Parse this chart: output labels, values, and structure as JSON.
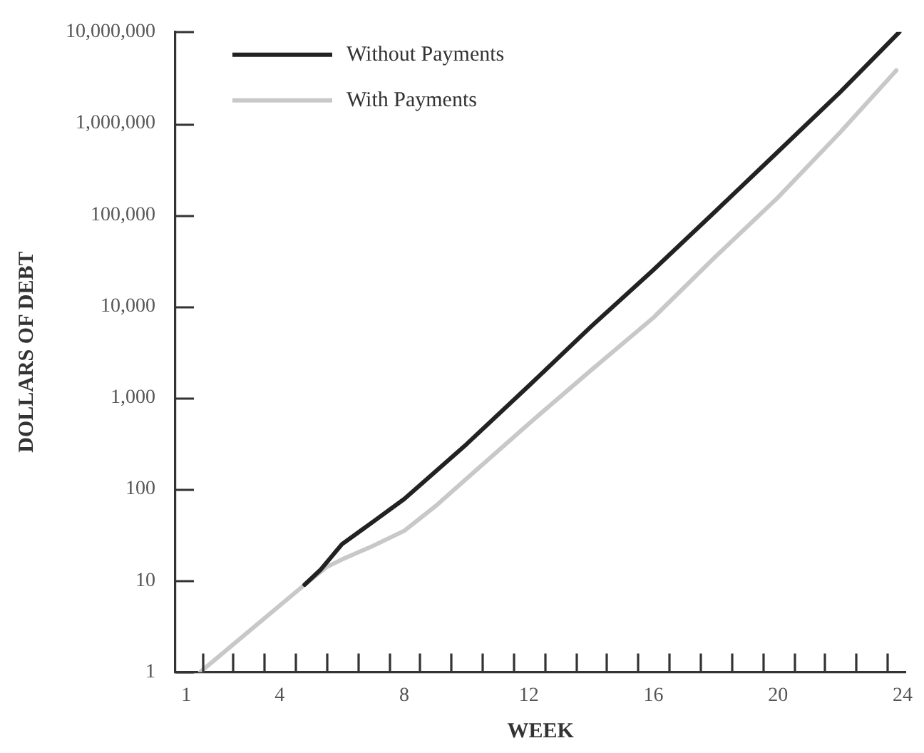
{
  "chart_data": {
    "type": "line",
    "xlabel": "WEEK",
    "ylabel": "DOLLARS OF DEBT",
    "log": "y",
    "grid": false,
    "legend": "top left",
    "marker": "none",
    "line_style": "solid",
    "xlim": [
      0.65,
      24.1
    ],
    "xticks": [
      1,
      {
        "value": 1.5,
        "label": null
      },
      {
        "value": 2.5,
        "label": null
      },
      {
        "value": 3.5,
        "label": null
      },
      4,
      {
        "value": 4.5,
        "label": null
      },
      {
        "value": 5.5,
        "label": null
      },
      {
        "value": 6.5,
        "label": null
      },
      {
        "value": 7.5,
        "label": null
      },
      8,
      {
        "value": 8.5,
        "label": null
      },
      {
        "value": 9.5,
        "label": null
      },
      {
        "value": 10.5,
        "label": null
      },
      {
        "value": 11.5,
        "label": null
      },
      12,
      {
        "value": 12.5,
        "label": null
      },
      {
        "value": 13.5,
        "label": null
      },
      {
        "value": 14.5,
        "label": null
      },
      {
        "value": 15.5,
        "label": null
      },
      16,
      {
        "value": 16.5,
        "label": null
      },
      {
        "value": 17.5,
        "label": null
      },
      {
        "value": 18.5,
        "label": null
      },
      {
        "value": 19.5,
        "label": null
      },
      20,
      {
        "value": 20.5,
        "label": null
      },
      {
        "value": 21.5,
        "label": null
      },
      {
        "value": 22.5,
        "label": null
      },
      {
        "value": 23.5,
        "label": null
      },
      24
    ],
    "ylim": [
      1,
      10000000
    ],
    "yticks": [
      1,
      10,
      100,
      {
        "value": 1000,
        "label": "1,000"
      },
      {
        "value": 10000,
        "label": "10,000"
      },
      {
        "value": 100000,
        "label": "100,000"
      },
      {
        "value": 1000000,
        "label": "1,000,000"
      },
      {
        "value": 10000000,
        "label": "10,000,000"
      }
    ],
    "series": [
      {
        "name": "Without Payments",
        "color": "#222222",
        "x": [
          4.8,
          5.3,
          6,
          7,
          8,
          10,
          12,
          14,
          16,
          18,
          20,
          22,
          23.9
        ],
        "values": [
          9,
          13,
          25,
          44,
          78,
          310,
          1350,
          6000,
          25000,
          110000,
          490000,
          2200000,
          10000000
        ]
      },
      {
        "name": "With Payments",
        "color": "#c8c8c8",
        "x": [
          1.45,
          4.8,
          5.5,
          6,
          7,
          8,
          9,
          10,
          11,
          12,
          14,
          16,
          18,
          20,
          22,
          23.8
        ],
        "values": [
          1,
          9,
          14,
          17,
          24,
          35,
          65,
          130,
          260,
          520,
          2000,
          7500,
          35000,
          155000,
          800000,
          3800000
        ]
      }
    ]
  }
}
